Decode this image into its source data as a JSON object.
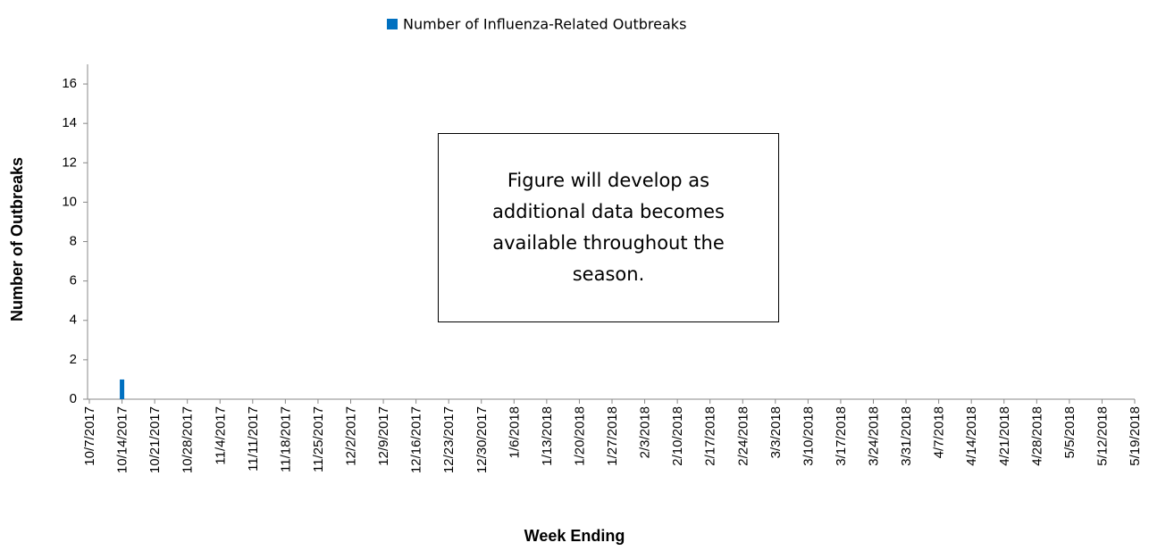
{
  "chart_data": {
    "type": "bar",
    "legend": "Number of Influenza-Related Outbreaks",
    "x_label": "Week Ending",
    "y_label": "Number of Outbreaks",
    "annotation": "Figure will develop as additional data becomes available throughout the season.",
    "color": "#0070c0",
    "categories": [
      "10/7/2017",
      "10/14/2017",
      "10/21/2017",
      "10/28/2017",
      "11/4/2017",
      "11/11/2017",
      "11/18/2017",
      "11/25/2017",
      "12/2/2017",
      "12/9/2017",
      "12/16/2017",
      "12/23/2017",
      "12/30/2017",
      "1/6/2018",
      "1/13/2018",
      "1/20/2018",
      "1/27/2018",
      "2/3/2018",
      "2/10/2018",
      "2/17/2018",
      "2/24/2018",
      "3/3/2018",
      "3/10/2018",
      "3/17/2018",
      "3/24/2018",
      "3/31/2018",
      "4/7/2018",
      "4/14/2018",
      "4/21/2018",
      "4/28/2018",
      "5/5/2018",
      "5/12/2018",
      "5/19/2018"
    ],
    "values": [
      0,
      1,
      null,
      null,
      null,
      null,
      null,
      null,
      null,
      null,
      null,
      null,
      null,
      null,
      null,
      null,
      null,
      null,
      null,
      null,
      null,
      null,
      null,
      null,
      null,
      null,
      null,
      null,
      null,
      null,
      null,
      null,
      null
    ],
    "ylim": [
      0,
      17
    ],
    "yticks": [
      0,
      2,
      4,
      6,
      8,
      10,
      12,
      14,
      16
    ]
  }
}
